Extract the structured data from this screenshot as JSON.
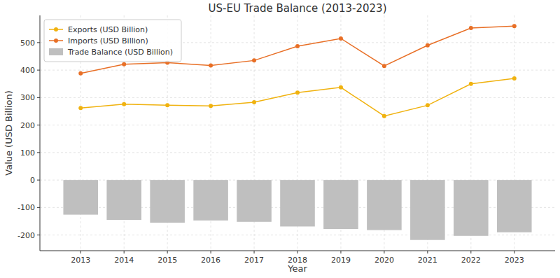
{
  "chart_data": {
    "type": "line",
    "title": "US-EU Trade Balance (2013-2023)",
    "x_label": "Year",
    "y_label": "Value (USD Billion)",
    "x": [
      2013,
      2014,
      2015,
      2016,
      2017,
      2018,
      2019,
      2020,
      2021,
      2022,
      2023
    ],
    "series": [
      {
        "name": "Exports (USD Billion)",
        "type": "line",
        "color": "#f0b20f",
        "marker": "circle",
        "line_style": "solid",
        "values": [
          262,
          276,
          272,
          270,
          283,
          318,
          337,
          233,
          272,
          350,
          370
        ]
      },
      {
        "name": "Imports (USD Billion)",
        "type": "line",
        "color": "#e86f26",
        "marker": "circle",
        "line_style": "solid",
        "values": [
          388,
          421,
          427,
          417,
          435,
          487,
          515,
          415,
          490,
          553,
          560
        ]
      },
      {
        "name": "Trade Balance (USD Billion)",
        "type": "bar",
        "color": "#bfbfbf",
        "values": [
          -126,
          -145,
          -155,
          -147,
          -152,
          -169,
          -178,
          -182,
          -218,
          -203,
          -190
        ]
      }
    ],
    "xlim": [
      2012.06,
      2023.94
    ],
    "xticks": [
      2013,
      2014,
      2015,
      2016,
      2017,
      2018,
      2019,
      2020,
      2021,
      2022,
      2023
    ],
    "ylim": [
      -257,
      599
    ],
    "yticks": [
      -200,
      -100,
      0,
      100,
      200,
      300,
      400,
      500
    ],
    "grid": true,
    "legend": "upper left"
  }
}
